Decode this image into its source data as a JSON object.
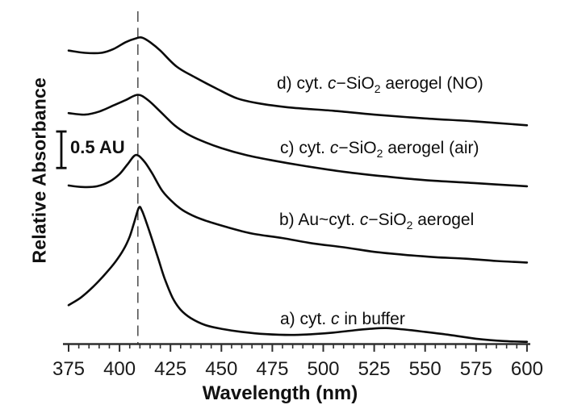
{
  "chart_data": {
    "type": "line",
    "title": "",
    "xlabel": "Wavelength (nm)",
    "ylabel": "Relative Absorbance",
    "xlim": [
      375,
      600
    ],
    "x_major_ticks": [
      375,
      400,
      425,
      450,
      475,
      500,
      525,
      550,
      575,
      600
    ],
    "x_minor_tick_step_nm": 5,
    "grid": false,
    "legend": "inline-labels-right-of-curves",
    "y_axis_style": "relative scale, no numeric ticks; vertical 0.5 AU scale bar shown",
    "scale_bar": {
      "label": "0.5 AU",
      "absorbance_units": 0.5
    },
    "dashed_reference_line_nm": 409,
    "colors": {
      "curve": "#0b0b0b",
      "axis": "#2e2e2e",
      "dashed_line": "#4a4a4a",
      "text": "#111111",
      "background": "#ffffff"
    },
    "series": [
      {
        "id": "a",
        "label": "a) cyt. c in buffer",
        "label_parts": {
          "pre": "a) cyt. ",
          "italic": "c",
          "mid": " in buffer",
          "sub": "",
          "post": ""
        },
        "soret_peak_nm": 409,
        "points_nm_au": [
          [
            375,
            0.51
          ],
          [
            381,
            0.61
          ],
          [
            387,
            0.75
          ],
          [
            393,
            0.92
          ],
          [
            398,
            1.08
          ],
          [
            402,
            1.24
          ],
          [
            405,
            1.41
          ],
          [
            407,
            1.58
          ],
          [
            409.5,
            1.79
          ],
          [
            411,
            1.75
          ],
          [
            413,
            1.61
          ],
          [
            416,
            1.37
          ],
          [
            419,
            1.12
          ],
          [
            422,
            0.87
          ],
          [
            426,
            0.61
          ],
          [
            430,
            0.45
          ],
          [
            435,
            0.34
          ],
          [
            442,
            0.25
          ],
          [
            450,
            0.2
          ],
          [
            460,
            0.16
          ],
          [
            472,
            0.13
          ],
          [
            484,
            0.12
          ],
          [
            495,
            0.13
          ],
          [
            505,
            0.15
          ],
          [
            515,
            0.18
          ],
          [
            523,
            0.2
          ],
          [
            531,
            0.21
          ],
          [
            540,
            0.19
          ],
          [
            550,
            0.16
          ],
          [
            562,
            0.12
          ],
          [
            575,
            0.07
          ],
          [
            588,
            0.04
          ],
          [
            600,
            0.03
          ]
        ]
      },
      {
        "id": "b",
        "label": "b) Au~cyt. c−SiO2 aerogel",
        "label_parts": {
          "pre": "b) Au~cyt. ",
          "italic": "c",
          "mid": "−SiO",
          "sub": "2",
          "post": " aerogel"
        },
        "soret_peak_nm": 408,
        "points_nm_au": [
          [
            375,
            2.08
          ],
          [
            382,
            2.06
          ],
          [
            389,
            2.07
          ],
          [
            395,
            2.13
          ],
          [
            400,
            2.23
          ],
          [
            404,
            2.36
          ],
          [
            408,
            2.48
          ],
          [
            412,
            2.4
          ],
          [
            416,
            2.24
          ],
          [
            421,
            2.01
          ],
          [
            427,
            1.84
          ],
          [
            432,
            1.74
          ],
          [
            440,
            1.64
          ],
          [
            452,
            1.54
          ],
          [
            465,
            1.45
          ],
          [
            480,
            1.39
          ],
          [
            495,
            1.32
          ],
          [
            510,
            1.27
          ],
          [
            525,
            1.21
          ],
          [
            540,
            1.17
          ],
          [
            555,
            1.14
          ],
          [
            570,
            1.12
          ],
          [
            585,
            1.09
          ],
          [
            600,
            1.07
          ]
        ]
      },
      {
        "id": "c",
        "label": "c) cyt. c−SiO2 aerogel (air)",
        "label_parts": {
          "pre": "c) cyt. ",
          "italic": "c",
          "mid": "−SiO",
          "sub": "2",
          "post": " aerogel (air)"
        },
        "soret_peak_nm": 409,
        "points_nm_au": [
          [
            375,
            3.03
          ],
          [
            383,
            3.01
          ],
          [
            390,
            3.05
          ],
          [
            397,
            3.13
          ],
          [
            403,
            3.2
          ],
          [
            409,
            3.27
          ],
          [
            414,
            3.2
          ],
          [
            420,
            3.05
          ],
          [
            427,
            2.87
          ],
          [
            433,
            2.76
          ],
          [
            440,
            2.67
          ],
          [
            450,
            2.57
          ],
          [
            462,
            2.48
          ],
          [
            475,
            2.41
          ],
          [
            490,
            2.34
          ],
          [
            510,
            2.26
          ],
          [
            530,
            2.2
          ],
          [
            550,
            2.15
          ],
          [
            575,
            2.11
          ],
          [
            600,
            2.07
          ]
        ]
      },
      {
        "id": "d",
        "label": "d) cyt. c−SiO2 aerogel (NO)",
        "label_parts": {
          "pre": "d) cyt. ",
          "italic": "c",
          "mid": "−SiO",
          "sub": "2",
          "post": " aerogel (NO)"
        },
        "soret_peak_nm": 411,
        "points_nm_au": [
          [
            375,
            3.85
          ],
          [
            383,
            3.82
          ],
          [
            391,
            3.82
          ],
          [
            397,
            3.87
          ],
          [
            403,
            3.96
          ],
          [
            408,
            4.01
          ],
          [
            411,
            4.02
          ],
          [
            415,
            3.96
          ],
          [
            420,
            3.85
          ],
          [
            428,
            3.64
          ],
          [
            437,
            3.5
          ],
          [
            447,
            3.36
          ],
          [
            458,
            3.22
          ],
          [
            470,
            3.15
          ],
          [
            485,
            3.1
          ],
          [
            505,
            3.06
          ],
          [
            525,
            3.01
          ],
          [
            550,
            2.96
          ],
          [
            575,
            2.92
          ],
          [
            600,
            2.87
          ]
        ]
      }
    ]
  }
}
